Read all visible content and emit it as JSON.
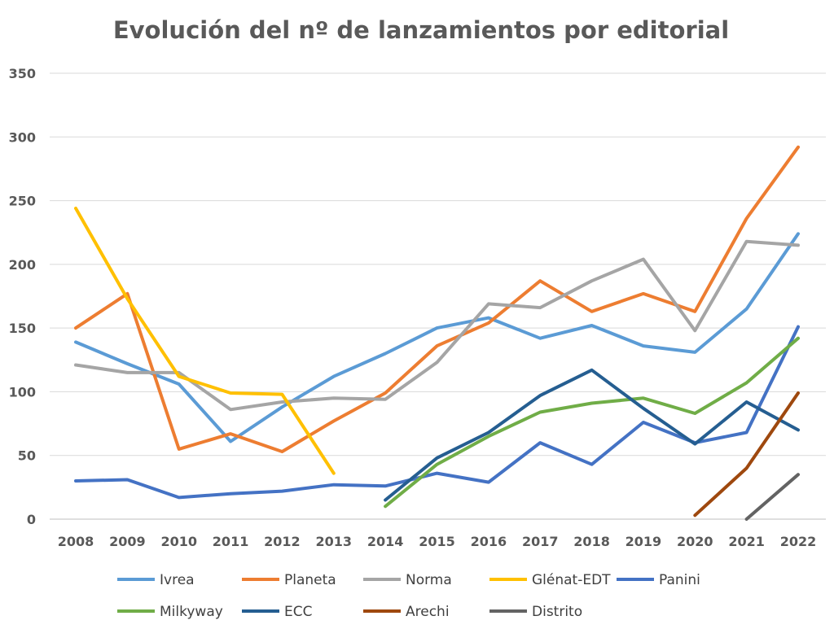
{
  "chart_data": {
    "type": "line",
    "title": "Evolución del nº de lanzamientos por editorial",
    "xlabel": "",
    "ylabel": "",
    "ylim": [
      0,
      350
    ],
    "yticks": [
      0,
      50,
      100,
      150,
      200,
      250,
      300,
      350
    ],
    "categories": [
      "2008",
      "2009",
      "2010",
      "2011",
      "2012",
      "2013",
      "2014",
      "2015",
      "2016",
      "2017",
      "2018",
      "2019",
      "2020",
      "2021",
      "2022"
    ],
    "grid": true,
    "legend_position": "bottom",
    "series": [
      {
        "name": "Ivrea",
        "color": "#5B9BD5",
        "values": [
          139,
          122,
          106,
          61,
          88,
          112,
          130,
          150,
          158,
          142,
          152,
          136,
          131,
          165,
          224
        ]
      },
      {
        "name": "Planeta",
        "color": "#ED7D31",
        "values": [
          150,
          177,
          55,
          67,
          53,
          77,
          99,
          136,
          154,
          187,
          163,
          177,
          163,
          236,
          292
        ]
      },
      {
        "name": "Norma",
        "color": "#A5A5A5",
        "values": [
          121,
          115,
          115,
          86,
          92,
          95,
          94,
          123,
          169,
          166,
          187,
          204,
          148,
          218,
          215
        ]
      },
      {
        "name": "Glénat-EDT",
        "color": "#FFC000",
        "values": [
          244,
          173,
          112,
          99,
          98,
          36,
          null,
          null,
          null,
          null,
          null,
          null,
          null,
          null,
          null
        ]
      },
      {
        "name": "Panini",
        "color": "#4472C4",
        "values": [
          30,
          31,
          17,
          20,
          22,
          27,
          26,
          36,
          29,
          60,
          43,
          76,
          60,
          68,
          151
        ]
      },
      {
        "name": "Milkyway",
        "color": "#70AD47",
        "values": [
          null,
          null,
          null,
          null,
          null,
          null,
          10,
          43,
          65,
          84,
          91,
          95,
          83,
          107,
          142
        ]
      },
      {
        "name": "ECC",
        "color": "#255E91",
        "values": [
          null,
          null,
          null,
          null,
          null,
          null,
          15,
          48,
          68,
          97,
          117,
          87,
          59,
          92,
          70
        ]
      },
      {
        "name": "Arechi",
        "color": "#9E480E",
        "values": [
          null,
          null,
          null,
          null,
          null,
          null,
          null,
          null,
          null,
          null,
          null,
          null,
          3,
          40,
          99
        ]
      },
      {
        "name": "Distrito",
        "color": "#636363",
        "values": [
          null,
          null,
          null,
          null,
          null,
          null,
          null,
          null,
          null,
          null,
          null,
          null,
          null,
          0,
          35
        ]
      }
    ]
  }
}
